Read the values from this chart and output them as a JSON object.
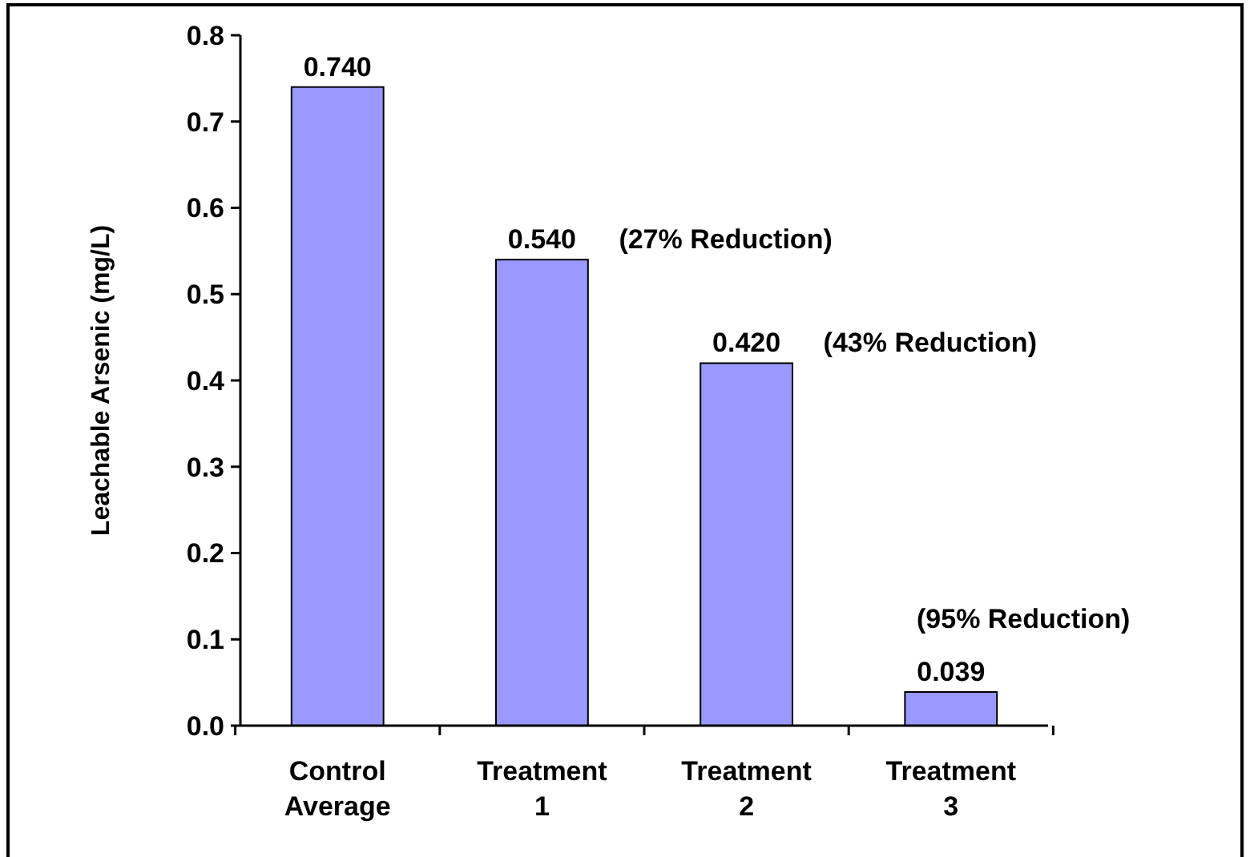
{
  "chart_data": {
    "type": "bar",
    "ylabel": "Leachable Arsenic (mg/L)",
    "categories": [
      "Control Average",
      "Treatment 1",
      "Treatment 2",
      "Treatment 3"
    ],
    "values": [
      0.74,
      0.54,
      0.42,
      0.039
    ],
    "value_labels": [
      "0.740",
      "0.540",
      "0.420",
      "0.039"
    ],
    "color": "#9999ff",
    "ylim": [
      0,
      0.8
    ],
    "yticks": [
      {
        "value": 0,
        "label": "0.0"
      },
      {
        "value": 0.1,
        "label": "0.1"
      },
      {
        "value": 0.2,
        "label": "0.2"
      },
      {
        "value": 0.3,
        "label": "0.3"
      },
      {
        "value": 0.4,
        "label": "0.4"
      },
      {
        "value": 0.5,
        "label": "0.5"
      },
      {
        "value": 0.6,
        "label": "0.6"
      },
      {
        "value": 0.7,
        "label": "0.7"
      },
      {
        "value": 0.8,
        "label": "0.8"
      }
    ],
    "annotations": [
      {
        "text": "(27% Reduction)",
        "x": "Treatment 1",
        "y": 0.54
      },
      {
        "text": "(43% Reduction)",
        "x": "Treatment 2",
        "y": 0.42
      },
      {
        "text": "(95% Reduction)",
        "x": "Treatment 3",
        "y": 0.039
      }
    ],
    "grid": false
  }
}
